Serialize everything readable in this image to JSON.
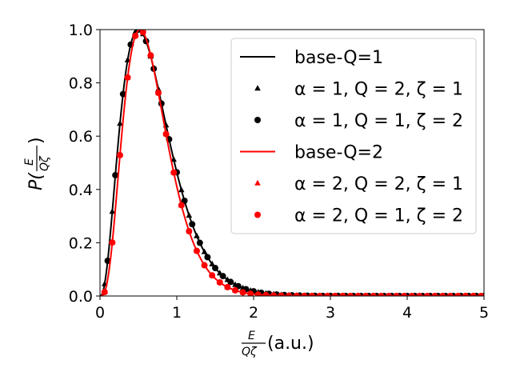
{
  "chart_data": {
    "type": "line",
    "xlim": [
      0,
      5
    ],
    "ylim": [
      0,
      1
    ],
    "x_ticks": [
      "0",
      "1",
      "2",
      "3",
      "4",
      "5"
    ],
    "y_ticks": [
      "0.0",
      "0.2",
      "0.4",
      "0.6",
      "0.8",
      "1.0"
    ],
    "xlabel": {
      "frac_num": "E",
      "frac_den": "Qζ",
      "suffix": "(a.u.)"
    },
    "ylabel": {
      "prefix": "P(",
      "frac_num": "E",
      "frac_den": "Qζ",
      "suffix": ")"
    },
    "grid": false,
    "legend_position": "top-right",
    "series": [
      {
        "name": "base-Q=1",
        "style": "line",
        "color": "#000000",
        "Q": 1
      },
      {
        "name": "α = 1, Q = 2, ζ = 1",
        "style": "triangle",
        "color": "#000000",
        "Q": 1,
        "x_start": 0.06
      },
      {
        "name": "α = 1, Q = 1, ζ = 2",
        "style": "circle",
        "color": "#000000",
        "Q": 1,
        "x_start": 0.1
      },
      {
        "name": "base-Q=2",
        "style": "line",
        "color": "#ff0000",
        "Q": 2
      },
      {
        "name": "α = 2, Q = 2, ζ = 1",
        "style": "triangle",
        "color": "#ff0000",
        "Q": 2,
        "x_start": 0.06
      },
      {
        "name": "α = 2, Q = 1, ζ = 2",
        "style": "circle",
        "color": "#ff0000",
        "Q": 2,
        "x_start": 0.06
      }
    ],
    "marker_step": 0.1
  }
}
